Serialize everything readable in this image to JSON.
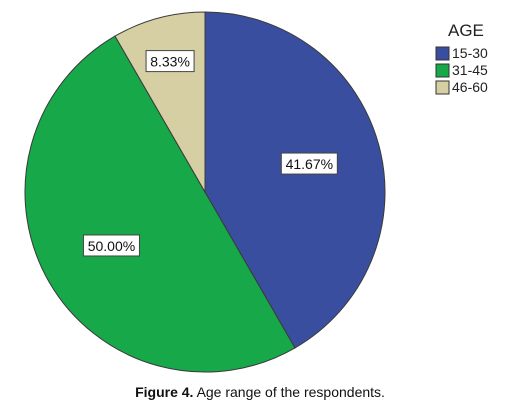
{
  "chart_data": {
    "type": "pie",
    "legend_title": "AGE",
    "legend_position": "top-right",
    "slices": [
      {
        "label": "15-30",
        "value": 41.67,
        "value_label": "41.67%",
        "color": "#3a4ea0"
      },
      {
        "label": "31-45",
        "value": 50.0,
        "value_label": "50.00%",
        "color": "#17a84a"
      },
      {
        "label": "46-60",
        "value": 8.33,
        "value_label": "8.33%",
        "color": "#d6cfa3"
      }
    ]
  },
  "caption": {
    "label": "Figure 4.",
    "text": "Age range of the respondents."
  }
}
